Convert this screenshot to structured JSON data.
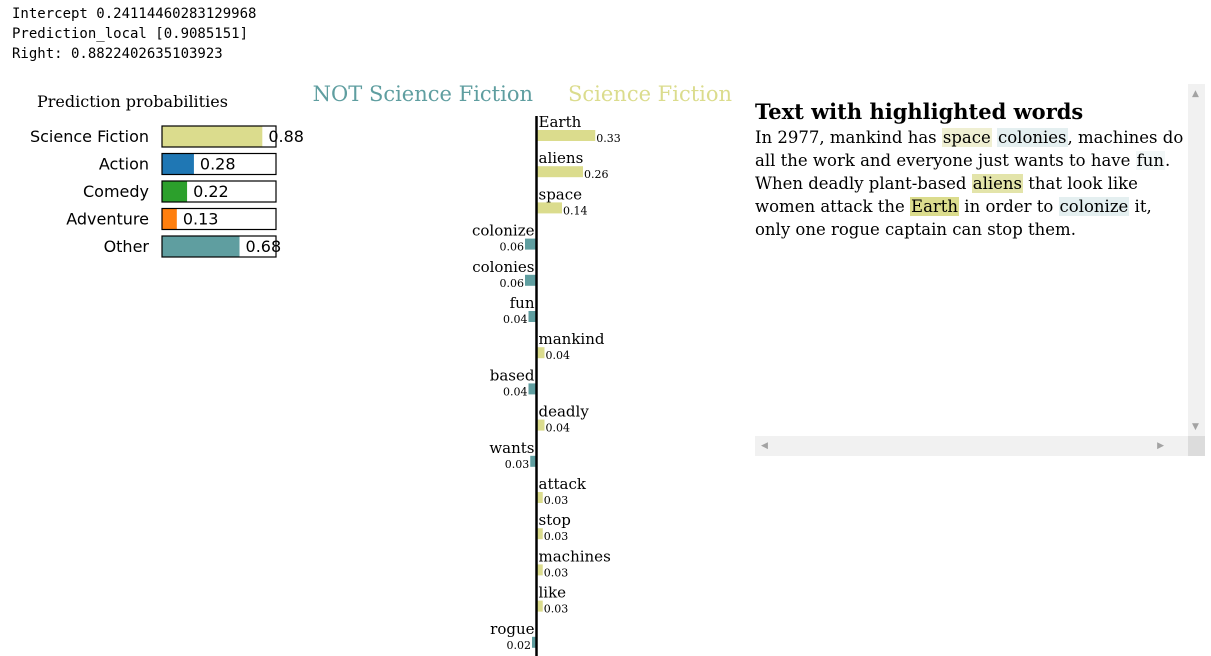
{
  "console": {
    "intercept": "Intercept 0.24114460283129968",
    "prediction_local": "Prediction_local [0.9085151]",
    "right": "Right: 0.8822402635103923"
  },
  "chart_data": [
    {
      "type": "bar",
      "title": "Prediction probabilities",
      "categories": [
        "Science Fiction",
        "Action",
        "Comedy",
        "Adventure",
        "Other"
      ],
      "values": [
        0.88,
        0.28,
        0.22,
        0.13,
        0.68
      ],
      "value_labels": [
        "0.88",
        "0.28",
        "0.22",
        "0.13",
        "0.68"
      ],
      "colors": [
        "#dbdc8d",
        "#1f77b4",
        "#2ca02c",
        "#ff7f0e",
        "#5f9ea0"
      ],
      "xlim": [
        0,
        1
      ]
    },
    {
      "type": "bar",
      "class_labels": {
        "negative": "NOT Science Fiction",
        "positive": "Science Fiction"
      },
      "colors": {
        "negative": "#5f9ea0",
        "positive": "#dbdc8d"
      },
      "features": [
        {
          "word": "Earth",
          "value": 0.33,
          "label": "0.33",
          "side": "positive"
        },
        {
          "word": "aliens",
          "value": 0.26,
          "label": "0.26",
          "side": "positive"
        },
        {
          "word": "space",
          "value": 0.14,
          "label": "0.14",
          "side": "positive"
        },
        {
          "word": "colonize",
          "value": 0.06,
          "label": "0.06",
          "side": "negative"
        },
        {
          "word": "colonies",
          "value": 0.06,
          "label": "0.06",
          "side": "negative"
        },
        {
          "word": "fun",
          "value": 0.04,
          "label": "0.04",
          "side": "negative"
        },
        {
          "word": "mankind",
          "value": 0.04,
          "label": "0.04",
          "side": "positive"
        },
        {
          "word": "based",
          "value": 0.04,
          "label": "0.04",
          "side": "negative"
        },
        {
          "word": "deadly",
          "value": 0.04,
          "label": "0.04",
          "side": "positive"
        },
        {
          "word": "wants",
          "value": 0.03,
          "label": "0.03",
          "side": "negative"
        },
        {
          "word": "attack",
          "value": 0.03,
          "label": "0.03",
          "side": "positive"
        },
        {
          "word": "stop",
          "value": 0.03,
          "label": "0.03",
          "side": "positive"
        },
        {
          "word": "machines",
          "value": 0.03,
          "label": "0.03",
          "side": "positive"
        },
        {
          "word": "like",
          "value": 0.03,
          "label": "0.03",
          "side": "positive"
        },
        {
          "word": "rogue",
          "value": 0.02,
          "label": "0.02",
          "side": "negative"
        }
      ]
    }
  ],
  "text_panel": {
    "title": "Text with highlighted words",
    "segments": [
      {
        "t": "In 2977, mankind has "
      },
      {
        "t": "space",
        "hl": "#efefd2"
      },
      {
        "t": " "
      },
      {
        "t": "colonies",
        "hl": "#e4eff0"
      },
      {
        "t": ", machines do all the work and everyone just wants to have "
      },
      {
        "t": "fun",
        "hl": "#f2f7f7"
      },
      {
        "t": ". When deadly plant-based "
      },
      {
        "t": "aliens",
        "hl": "#e3e4aa"
      },
      {
        "t": " that look like women attack the "
      },
      {
        "t": "Earth",
        "hl": "#dbdc8d"
      },
      {
        "t": " in order to "
      },
      {
        "t": "colonize",
        "hl": "#e4eff0"
      },
      {
        "t": " it, only one rogue captain can stop them."
      }
    ]
  }
}
